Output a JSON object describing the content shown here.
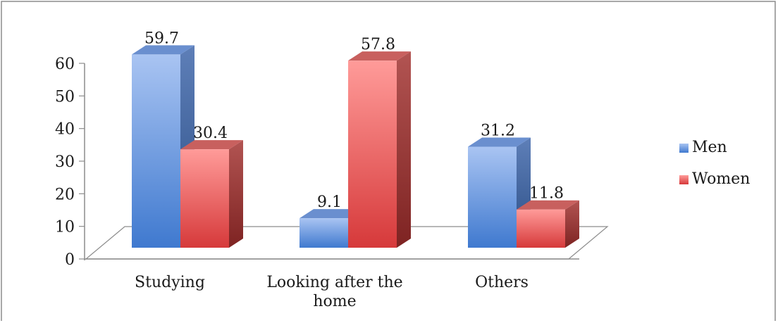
{
  "chart_data": {
    "type": "bar",
    "categories": [
      "Studying",
      "Looking after the home",
      "Others"
    ],
    "series": [
      {
        "name": "Men",
        "values": [
          59.7,
          9.1,
          31.2
        ],
        "color": "#4f81bd"
      },
      {
        "name": "Women",
        "values": [
          30.4,
          57.8,
          11.8
        ],
        "color": "#e0504d"
      }
    ],
    "y_ticks": [
      "0",
      "10",
      "20",
      "30",
      "40",
      "50",
      "60"
    ],
    "ylim": [
      0,
      60
    ],
    "value_labels": {
      "Men": [
        "59.7",
        "9.1",
        "31.2"
      ],
      "Women": [
        "30.4",
        "57.8",
        "11.8"
      ]
    },
    "legend": {
      "position": "right",
      "entries": [
        "Men",
        "Women"
      ]
    },
    "style": "3d-clustered-column",
    "grid": false,
    "title": "",
    "xlabel": "",
    "ylabel": ""
  }
}
